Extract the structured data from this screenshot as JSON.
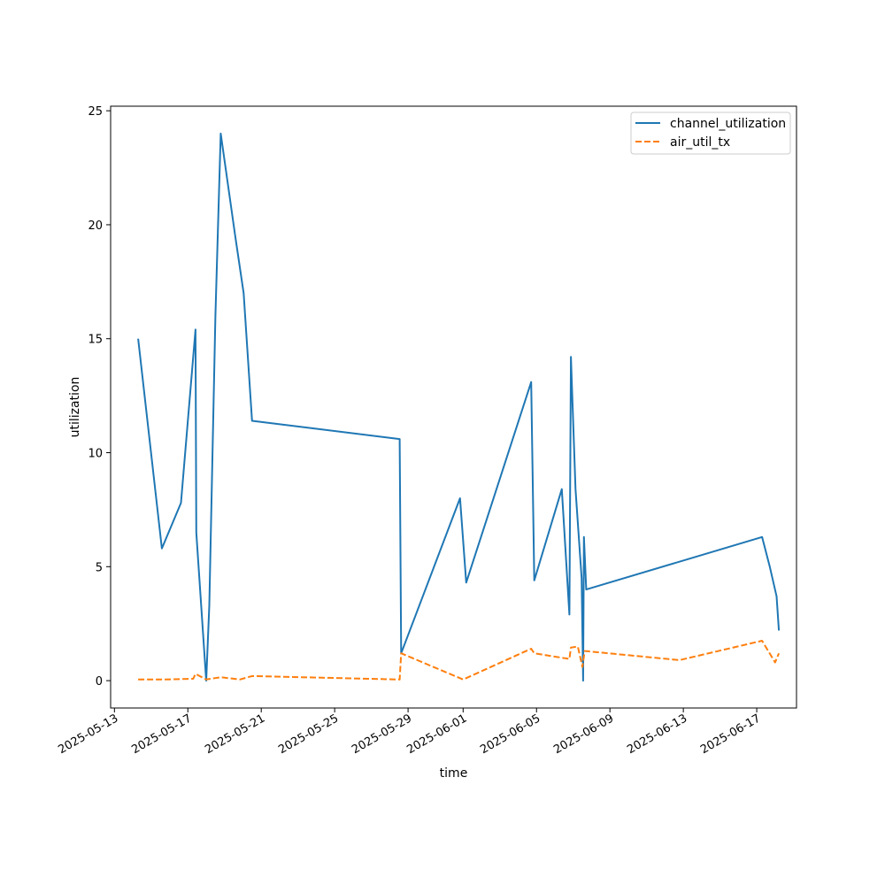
{
  "chart_data": {
    "type": "line",
    "title": "",
    "xlabel": "time",
    "ylabel": "utilization",
    "x_axis_type": "date",
    "xlim": [
      "2025-05-12T19:00",
      "2025-06-19T04:00"
    ],
    "ylim": [
      -1.2,
      25.2
    ],
    "x_ticks": [
      "2025-05-13",
      "2025-05-17",
      "2025-05-21",
      "2025-05-25",
      "2025-05-29",
      "2025-06-01",
      "2025-06-05",
      "2025-06-09",
      "2025-06-13",
      "2025-06-17"
    ],
    "y_ticks": [
      0,
      5,
      10,
      15,
      20,
      25
    ],
    "y_tick_labels": [
      "0",
      "5",
      "10",
      "15",
      "20",
      "25"
    ],
    "grid": false,
    "legend_position": "upper right",
    "series": [
      {
        "name": "channel_utilization",
        "color": "#1f77b4",
        "style": "solid",
        "points": [
          {
            "x": "2025-05-14T07:00",
            "y": 15.0
          },
          {
            "x": "2025-05-15T14:00",
            "y": 5.8
          },
          {
            "x": "2025-05-16T15:00",
            "y": 7.8
          },
          {
            "x": "2025-05-17T10:00",
            "y": 15.4
          },
          {
            "x": "2025-05-17T11:00",
            "y": 6.5
          },
          {
            "x": "2025-05-18T00:00",
            "y": 0.0
          },
          {
            "x": "2025-05-18T04:00",
            "y": 3.3
          },
          {
            "x": "2025-05-18T12:00",
            "y": 16.0
          },
          {
            "x": "2025-05-18T19:00",
            "y": 24.0
          },
          {
            "x": "2025-05-19T14:00",
            "y": 19.5
          },
          {
            "x": "2025-05-20T01:00",
            "y": 17.0
          },
          {
            "x": "2025-05-20T12:00",
            "y": 11.4
          },
          {
            "x": "2025-05-28T13:00",
            "y": 10.6
          },
          {
            "x": "2025-05-28T15:00",
            "y": 1.2
          },
          {
            "x": "2025-05-31T20:00",
            "y": 8.0
          },
          {
            "x": "2025-06-01T04:00",
            "y": 4.3
          },
          {
            "x": "2025-06-04T17:00",
            "y": 13.1
          },
          {
            "x": "2025-06-04T21:00",
            "y": 4.4
          },
          {
            "x": "2025-06-06T09:00",
            "y": 8.4
          },
          {
            "x": "2025-06-06T19:00",
            "y": 2.9
          },
          {
            "x": "2025-06-06T21:00",
            "y": 14.2
          },
          {
            "x": "2025-06-07T03:00",
            "y": 8.4
          },
          {
            "x": "2025-06-07T11:00",
            "y": 4.5
          },
          {
            "x": "2025-06-07T13:00",
            "y": 0.0
          },
          {
            "x": "2025-06-07T14:00",
            "y": 6.3
          },
          {
            "x": "2025-06-07T17:00",
            "y": 4.0
          },
          {
            "x": "2025-06-17T07:00",
            "y": 6.3
          },
          {
            "x": "2025-06-17T17:00",
            "y": 5.0
          },
          {
            "x": "2025-06-18T02:00",
            "y": 3.7
          },
          {
            "x": "2025-06-18T05:00",
            "y": 2.2
          }
        ]
      },
      {
        "name": "air_util_tx",
        "color": "#ff7f0e",
        "style": "dashed",
        "points": [
          {
            "x": "2025-05-14T07:00",
            "y": 0.05
          },
          {
            "x": "2025-05-15T14:00",
            "y": 0.05
          },
          {
            "x": "2025-05-17T07:00",
            "y": 0.08
          },
          {
            "x": "2025-05-17T10:00",
            "y": 0.3
          },
          {
            "x": "2025-05-18T00:00",
            "y": 0.05
          },
          {
            "x": "2025-05-18T19:00",
            "y": 0.15
          },
          {
            "x": "2025-05-19T20:00",
            "y": 0.05
          },
          {
            "x": "2025-05-20T12:00",
            "y": 0.2
          },
          {
            "x": "2025-05-28T13:00",
            "y": 0.05
          },
          {
            "x": "2025-05-28T15:00",
            "y": 1.2
          },
          {
            "x": "2025-06-01T00:00",
            "y": 0.05
          },
          {
            "x": "2025-06-04T17:00",
            "y": 1.4
          },
          {
            "x": "2025-06-04T21:00",
            "y": 1.2
          },
          {
            "x": "2025-06-06T19:00",
            "y": 0.95
          },
          {
            "x": "2025-06-06T21:00",
            "y": 1.45
          },
          {
            "x": "2025-06-07T06:00",
            "y": 1.5
          },
          {
            "x": "2025-06-07T12:00",
            "y": 0.6
          },
          {
            "x": "2025-06-07T15:00",
            "y": 1.3
          },
          {
            "x": "2025-06-12T19:00",
            "y": 0.9
          },
          {
            "x": "2025-06-17T07:00",
            "y": 1.75
          },
          {
            "x": "2025-06-18T00:00",
            "y": 0.8
          },
          {
            "x": "2025-06-18T05:00",
            "y": 1.2
          }
        ]
      }
    ]
  }
}
